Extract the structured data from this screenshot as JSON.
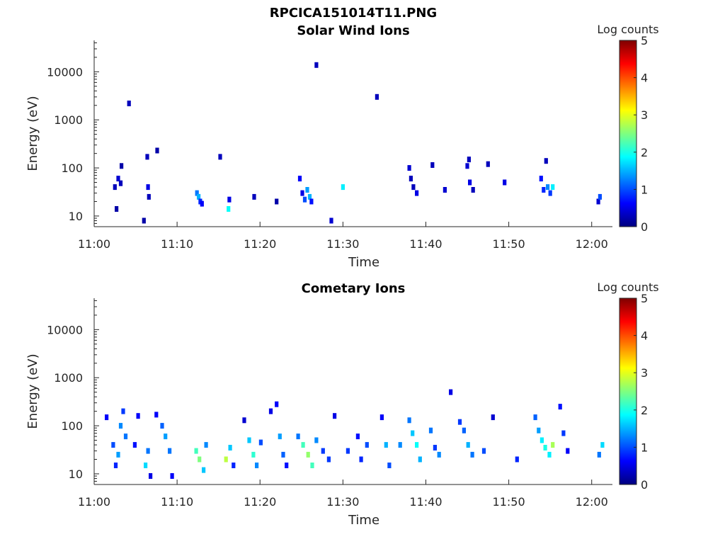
{
  "figure_title": "RPCICA151014T11.PNG",
  "colormap": [
    "#00007f",
    "#0000ff",
    "#007fff",
    "#00ffff",
    "#7fff7f",
    "#ffff00",
    "#ff7f00",
    "#ff0000",
    "#7f0000"
  ],
  "chart_data": [
    {
      "type": "heatmap",
      "title": "Solar Wind Ions",
      "xlabel": "Time",
      "ylabel": "Energy (eV)",
      "x_ticks": [
        "11:00",
        "11:10",
        "11:20",
        "11:30",
        "11:40",
        "11:50",
        "12:00"
      ],
      "x_tick_minutes": [
        0,
        10,
        20,
        30,
        40,
        50,
        60
      ],
      "xlim_minutes": [
        0,
        62.5
      ],
      "y_scale": "log",
      "ylim": [
        6,
        45000
      ],
      "y_ticks": [
        "10",
        "100",
        "1000",
        "10000"
      ],
      "y_tick_values": [
        10,
        100,
        1000,
        10000
      ],
      "colorbar": {
        "label": "Log counts",
        "range": [
          0,
          5
        ],
        "ticks": [
          "0",
          "1",
          "2",
          "3",
          "4",
          "5"
        ]
      },
      "points": [
        [
          2.5,
          40,
          0.3
        ],
        [
          2.7,
          14,
          0.2
        ],
        [
          2.9,
          60,
          0.4
        ],
        [
          3.2,
          48,
          0.3
        ],
        [
          3.3,
          110,
          0.2
        ],
        [
          4.2,
          2200,
          0.3
        ],
        [
          6.0,
          8,
          0.2
        ],
        [
          6.4,
          170,
          0.3
        ],
        [
          6.5,
          40,
          0.5
        ],
        [
          6.6,
          25,
          0.3
        ],
        [
          7.6,
          230,
          0.2
        ],
        [
          12.4,
          30,
          1.2
        ],
        [
          12.6,
          25,
          1.5
        ],
        [
          12.8,
          20,
          0.8
        ],
        [
          13.0,
          18,
          0.6
        ],
        [
          15.2,
          170,
          0.3
        ],
        [
          16.2,
          14,
          1.9
        ],
        [
          16.3,
          22,
          0.5
        ],
        [
          19.3,
          25,
          0.3
        ],
        [
          22.0,
          20,
          0.2
        ],
        [
          24.8,
          60,
          0.6
        ],
        [
          25.1,
          30,
          0.5
        ],
        [
          25.4,
          22,
          1.0
        ],
        [
          25.7,
          35,
          1.4
        ],
        [
          26.0,
          25,
          1.5
        ],
        [
          26.2,
          20,
          0.7
        ],
        [
          26.8,
          13800,
          0.3
        ],
        [
          28.6,
          8,
          0.4
        ],
        [
          30.0,
          40,
          1.8
        ],
        [
          34.1,
          3000,
          0.3
        ],
        [
          38.0,
          100,
          0.4
        ],
        [
          38.2,
          60,
          0.3
        ],
        [
          38.5,
          40,
          0.3
        ],
        [
          38.9,
          30,
          0.5
        ],
        [
          40.8,
          115,
          0.3
        ],
        [
          42.3,
          35,
          0.4
        ],
        [
          45.0,
          110,
          0.4
        ],
        [
          45.2,
          150,
          0.3
        ],
        [
          45.3,
          50,
          0.5
        ],
        [
          45.7,
          35,
          0.3
        ],
        [
          47.5,
          120,
          0.3
        ],
        [
          49.5,
          50,
          0.5
        ],
        [
          53.9,
          60,
          0.7
        ],
        [
          54.2,
          35,
          0.8
        ],
        [
          54.5,
          140,
          0.3
        ],
        [
          54.7,
          40,
          1.3
        ],
        [
          55.0,
          30,
          0.9
        ],
        [
          55.3,
          40,
          1.8
        ],
        [
          60.8,
          20,
          0.4
        ],
        [
          61.0,
          25,
          1.0
        ]
      ]
    },
    {
      "type": "heatmap",
      "title": "Cometary Ions",
      "xlabel": "Time",
      "ylabel": "Energy (eV)",
      "x_ticks": [
        "11:00",
        "11:10",
        "11:20",
        "11:30",
        "11:40",
        "11:50",
        "12:00"
      ],
      "x_tick_minutes": [
        0,
        10,
        20,
        30,
        40,
        50,
        60
      ],
      "xlim_minutes": [
        0,
        62.5
      ],
      "y_scale": "log",
      "ylim": [
        6,
        45000
      ],
      "y_ticks": [
        "10",
        "100",
        "1000",
        "10000"
      ],
      "y_tick_values": [
        10,
        100,
        1000,
        10000
      ],
      "colorbar": {
        "label": "Log counts",
        "range": [
          0,
          5
        ],
        "ticks": [
          "0",
          "1",
          "2",
          "3",
          "4",
          "5"
        ]
      },
      "points": [
        [
          1.5,
          150,
          0.6
        ],
        [
          2.3,
          40,
          1.0
        ],
        [
          2.6,
          15,
          0.8
        ],
        [
          2.9,
          25,
          1.4
        ],
        [
          3.2,
          100,
          1.3
        ],
        [
          3.5,
          200,
          0.9
        ],
        [
          3.8,
          60,
          1.2
        ],
        [
          4.9,
          40,
          0.7
        ],
        [
          5.3,
          160,
          0.6
        ],
        [
          6.2,
          15,
          1.7
        ],
        [
          6.5,
          30,
          1.2
        ],
        [
          6.8,
          9,
          0.5
        ],
        [
          7.5,
          170,
          0.6
        ],
        [
          8.2,
          100,
          1.1
        ],
        [
          8.6,
          60,
          1.4
        ],
        [
          9.1,
          30,
          1.2
        ],
        [
          9.4,
          9,
          0.6
        ],
        [
          12.3,
          30,
          2.2
        ],
        [
          12.7,
          20,
          2.5
        ],
        [
          13.2,
          12,
          1.6
        ],
        [
          13.5,
          40,
          1.3
        ],
        [
          15.9,
          20,
          2.8
        ],
        [
          16.4,
          35,
          1.6
        ],
        [
          16.8,
          15,
          0.8
        ],
        [
          18.1,
          130,
          0.4
        ],
        [
          18.7,
          50,
          1.6
        ],
        [
          19.2,
          25,
          2.1
        ],
        [
          19.6,
          15,
          1.3
        ],
        [
          20.1,
          45,
          1.0
        ],
        [
          21.3,
          200,
          0.5
        ],
        [
          22.0,
          280,
          0.6
        ],
        [
          22.4,
          60,
          1.4
        ],
        [
          22.8,
          25,
          1.1
        ],
        [
          23.2,
          15,
          0.7
        ],
        [
          24.6,
          60,
          1.2
        ],
        [
          25.2,
          40,
          2.2
        ],
        [
          25.8,
          25,
          2.6
        ],
        [
          26.3,
          15,
          2.2
        ],
        [
          26.8,
          50,
          1.3
        ],
        [
          27.6,
          30,
          0.9
        ],
        [
          28.3,
          20,
          0.9
        ],
        [
          29.0,
          160,
          0.5
        ],
        [
          30.6,
          30,
          0.9
        ],
        [
          31.8,
          60,
          0.7
        ],
        [
          32.2,
          20,
          0.8
        ],
        [
          32.9,
          40,
          1.0
        ],
        [
          34.7,
          150,
          0.6
        ],
        [
          35.2,
          40,
          1.5
        ],
        [
          35.6,
          15,
          1.0
        ],
        [
          36.9,
          40,
          1.3
        ],
        [
          38.0,
          130,
          1.2
        ],
        [
          38.4,
          70,
          1.6
        ],
        [
          38.9,
          40,
          1.9
        ],
        [
          39.3,
          20,
          1.5
        ],
        [
          40.6,
          80,
          1.2
        ],
        [
          41.1,
          35,
          0.9
        ],
        [
          41.6,
          25,
          1.3
        ],
        [
          43.0,
          500,
          0.5
        ],
        [
          44.1,
          120,
          0.9
        ],
        [
          44.6,
          80,
          1.1
        ],
        [
          45.1,
          40,
          1.5
        ],
        [
          45.6,
          25,
          1.2
        ],
        [
          47.0,
          30,
          1.0
        ],
        [
          48.1,
          150,
          0.4
        ],
        [
          51.0,
          20,
          0.8
        ],
        [
          53.2,
          150,
          1.1
        ],
        [
          53.6,
          80,
          1.4
        ],
        [
          54.0,
          50,
          1.8
        ],
        [
          54.4,
          35,
          2.0
        ],
        [
          54.9,
          25,
          1.8
        ],
        [
          55.3,
          40,
          2.7
        ],
        [
          56.2,
          250,
          0.7
        ],
        [
          56.6,
          70,
          0.9
        ],
        [
          57.1,
          30,
          0.6
        ],
        [
          60.9,
          25,
          1.2
        ],
        [
          61.3,
          40,
          1.7
        ]
      ]
    }
  ]
}
